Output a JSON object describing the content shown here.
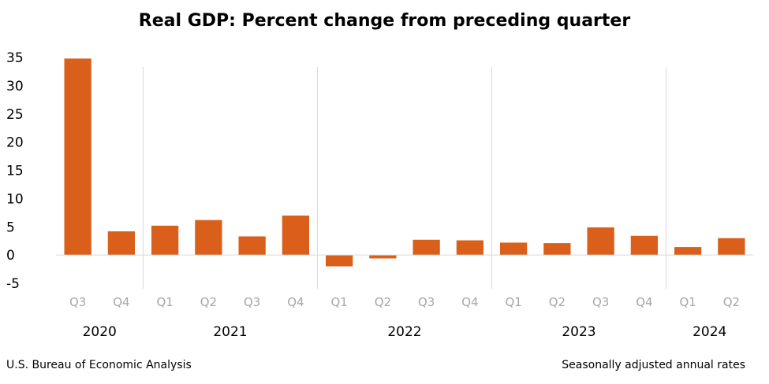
{
  "chart_data": {
    "type": "bar",
    "title": "Real GDP: Percent change from preceding quarter",
    "xlabel": "",
    "ylabel": "",
    "ylim": [
      -5,
      35
    ],
    "yticks": [
      35,
      30,
      25,
      20,
      15,
      10,
      5,
      0,
      -5
    ],
    "categories": [
      "Q3",
      "Q4",
      "Q1",
      "Q2",
      "Q3",
      "Q4",
      "Q1",
      "Q2",
      "Q3",
      "Q4",
      "Q1",
      "Q2",
      "Q3",
      "Q4",
      "Q1",
      "Q2"
    ],
    "years": [
      {
        "label": "2020",
        "quarters": 2
      },
      {
        "label": "2021",
        "quarters": 4
      },
      {
        "label": "2022",
        "quarters": 4
      },
      {
        "label": "2023",
        "quarters": 4
      },
      {
        "label": "2024",
        "quarters": 2
      }
    ],
    "values": [
      34.8,
      4.2,
      5.2,
      6.2,
      3.3,
      7.0,
      -2.0,
      -0.6,
      2.7,
      2.6,
      2.2,
      2.1,
      4.9,
      3.4,
      1.4,
      3.0
    ],
    "bar_color": "#d95f1a",
    "grid": false
  },
  "footer": {
    "source": "U.S. Bureau of Economic Analysis",
    "note": "Seasonally adjusted annual rates"
  }
}
